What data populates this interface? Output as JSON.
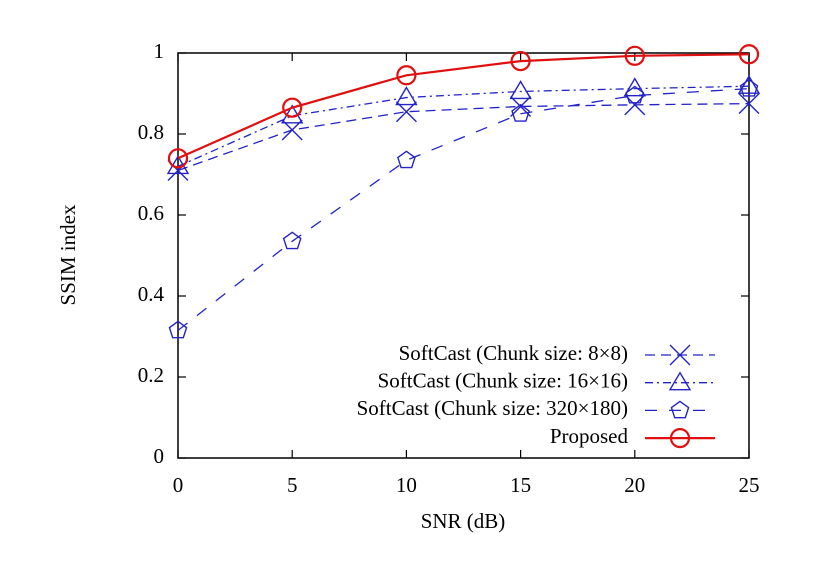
{
  "chart_data": {
    "type": "line",
    "xlabel": "SNR (dB)",
    "ylabel": "SSIM index",
    "x": [
      0,
      5,
      10,
      15,
      20,
      25
    ],
    "xlim": [
      0,
      25
    ],
    "xticks": [
      0,
      5,
      10,
      15,
      20,
      25
    ],
    "ylim": [
      0,
      1
    ],
    "yticks": [
      0,
      0.2,
      0.4,
      0.6,
      0.8,
      1
    ],
    "legend": "lower right",
    "series": [
      {
        "name": "SoftCast (Chunk size: 8×8)",
        "color": "#2323c8",
        "marker": "x",
        "dash": "10 6",
        "values": [
          0.71,
          0.81,
          0.855,
          0.868,
          0.872,
          0.875
        ]
      },
      {
        "name": "SoftCast (Chunk size: 16×16)",
        "color": "#2323c8",
        "marker": "triangle",
        "dash": "8 4 2 4",
        "values": [
          0.72,
          0.845,
          0.89,
          0.905,
          0.912,
          0.918
        ]
      },
      {
        "name": "SoftCast (Chunk size: 320×180)",
        "color": "#2323c8",
        "marker": "pentagon",
        "dash": "12 12",
        "values": [
          0.315,
          0.535,
          0.735,
          0.85,
          0.895,
          0.912
        ]
      },
      {
        "name": "Proposed",
        "color": "#e01010",
        "marker": "circle",
        "dash": "none",
        "values": [
          0.74,
          0.865,
          0.945,
          0.98,
          0.993,
          0.997
        ]
      }
    ]
  }
}
